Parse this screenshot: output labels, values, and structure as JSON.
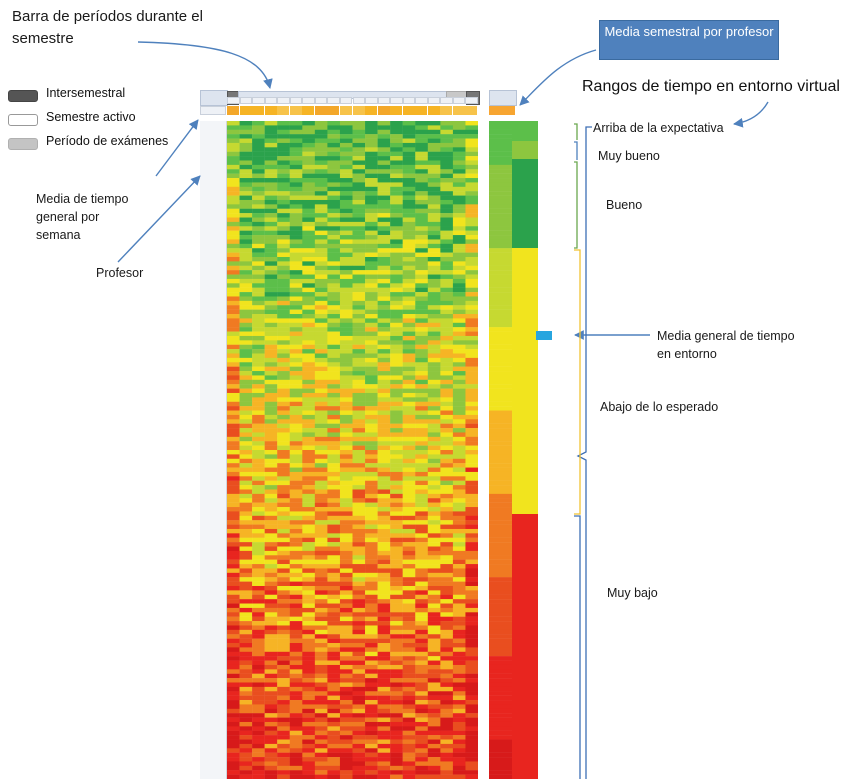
{
  "annotations": {
    "barra_periodos": "Barra de períodos durante el semestre",
    "media_semestral": "Media semestral por profesor",
    "rangos_title": "Rangos de tiempo en entorno virtual",
    "media_semana": "Media de tiempo general por semana",
    "profesor": "Profesor",
    "media_general": "Media general de tiempo en entorno"
  },
  "legend": {
    "intersemestral": "Intersemestral",
    "semestre_activo": "Semestre activo",
    "examenes": "Período de exámenes"
  },
  "ranges": {
    "arriba": "Arriba de la expectativa",
    "muy_bueno": "Muy bueno",
    "bueno": "Bueno",
    "abajo": "Abajo de lo esperado",
    "muy_bajo": "Muy bajo"
  },
  "colors": {
    "red": "#e8251f",
    "orange": "#f07a22",
    "yellow": "#f1e41e",
    "light_green": "#8dc63f",
    "green": "#2ba24c",
    "blue_box": "#4f81bd",
    "arrow": "#4f81bd",
    "bracket_green": "#6aa84f",
    "bracket_yellow": "#f1c232",
    "bracket_blue": "#3d6fb5"
  },
  "heatmap": {
    "rows": 150,
    "columns": 20,
    "gradient": "green-to-red (top to bottom)"
  }
}
